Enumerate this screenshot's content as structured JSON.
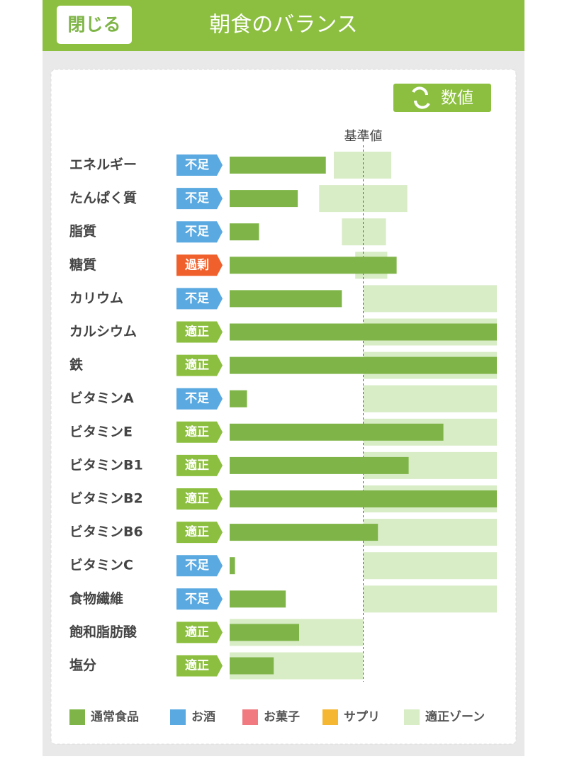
{
  "header": {
    "close": "閉じる",
    "title": "朝食のバランス"
  },
  "toggle_button": "数値",
  "chart_data": {
    "type": "bar",
    "orientation": "horizontal",
    "categories": [
      "エネルギー",
      "たんぱく質",
      "脂質",
      "糖質",
      "カリウム",
      "カルシウム",
      "鉄",
      "ビタミンA",
      "ビタミンE",
      "ビタミンB1",
      "ビタミンB2",
      "ビタミンB6",
      "ビタミンC",
      "食物繊維",
      "飽和脂肪酸",
      "塩分"
    ],
    "status": [
      "不足",
      "不足",
      "不足",
      "過剰",
      "不足",
      "適正",
      "適正",
      "不足",
      "適正",
      "適正",
      "適正",
      "適正",
      "不足",
      "不足",
      "適正",
      "適正"
    ],
    "status_colors": {
      "不足": "#5aa9e0",
      "適正": "#8cbf3f",
      "過剰": "#f0602c"
    },
    "series": [
      {
        "name": "通常食品",
        "color": "#7fb548",
        "values": [
          72,
          51,
          22,
          125,
          84,
          200,
          200,
          13,
          160,
          134,
          200,
          111,
          4,
          42,
          52,
          33
        ]
      }
    ],
    "zone_name": "適正ゾーン",
    "zone_color": "#d8ecc6",
    "zones": [
      {
        "low": 78,
        "high": 121
      },
      {
        "low": 67,
        "high": 133
      },
      {
        "low": 84,
        "high": 117
      },
      {
        "low": 94,
        "high": 118
      },
      {
        "low": 100,
        "high": 200
      },
      {
        "low": 100,
        "high": 200
      },
      {
        "low": 100,
        "high": 200
      },
      {
        "low": 100,
        "high": 200
      },
      {
        "low": 100,
        "high": 200
      },
      {
        "low": 100,
        "high": 200
      },
      {
        "low": 100,
        "high": 200
      },
      {
        "low": 100,
        "high": 200
      },
      {
        "low": 100,
        "high": 200
      },
      {
        "low": 100,
        "high": 200
      },
      {
        "low": 0,
        "high": 100
      },
      {
        "low": 0,
        "high": 100
      }
    ],
    "reference": {
      "value": 100,
      "label": "基準値"
    },
    "xlim": [
      0,
      200
    ],
    "legend_items": [
      {
        "name": "お酒",
        "color": "#5aa9e0"
      },
      {
        "name": "お菓子",
        "color": "#f07a80"
      },
      {
        "name": "サプリ",
        "color": "#f5b731"
      }
    ]
  }
}
